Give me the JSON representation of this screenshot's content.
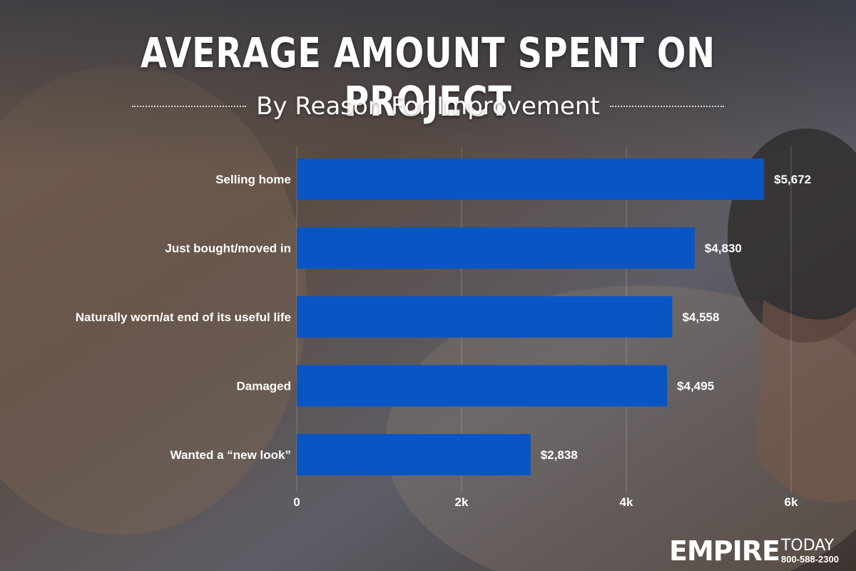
{
  "header": {
    "title": "AVERAGE AMOUNT SPENT ON PROJECT",
    "subtitle": "By Reason For Improvement"
  },
  "chart_data": {
    "type": "bar",
    "orientation": "horizontal",
    "categories": [
      "Selling home",
      "Just bought/moved in",
      "Naturally worn/at end of its useful life",
      "Damaged",
      "Wanted a “new look”"
    ],
    "values": [
      5672,
      4830,
      4558,
      4495,
      2838
    ],
    "value_labels": [
      "$5,672",
      "$4,830",
      "$4,558",
      "$4,495",
      "$2,838"
    ],
    "xlim": [
      0,
      6000
    ],
    "x_ticks": [
      0,
      2000,
      4000,
      6000
    ],
    "x_tick_labels": [
      "0",
      "2k",
      "4k",
      "6k"
    ],
    "bar_color": "#0a55c4",
    "grid": true
  },
  "logo": {
    "brand": "EMPIRE",
    "suffix": "TODAY",
    "phone": "800-588-2300"
  }
}
